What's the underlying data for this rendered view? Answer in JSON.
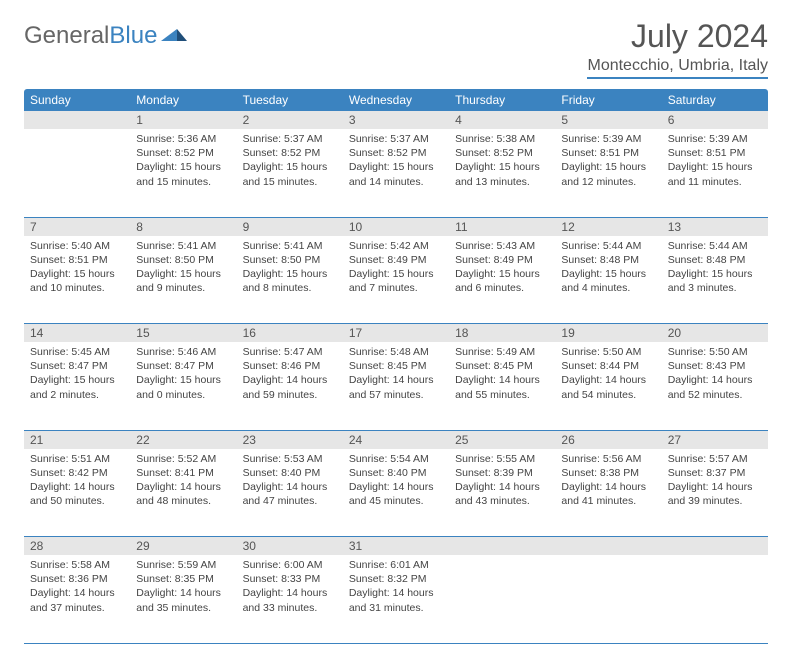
{
  "brand": {
    "part1": "General",
    "part2": "Blue"
  },
  "title": "July 2024",
  "location": "Montecchio, Umbria, Italy",
  "colors": {
    "accent": "#3b83c0",
    "header_bg": "#3b83c0",
    "header_text": "#ffffff",
    "daynum_bg": "#e6e6e6",
    "text": "#444444",
    "border": "#3b83c0"
  },
  "weekdays": [
    "Sunday",
    "Monday",
    "Tuesday",
    "Wednesday",
    "Thursday",
    "Friday",
    "Saturday"
  ],
  "weeks": [
    [
      null,
      {
        "n": "1",
        "sunrise": "Sunrise: 5:36 AM",
        "sunset": "Sunset: 8:52 PM",
        "day1": "Daylight: 15 hours",
        "day2": "and 15 minutes."
      },
      {
        "n": "2",
        "sunrise": "Sunrise: 5:37 AM",
        "sunset": "Sunset: 8:52 PM",
        "day1": "Daylight: 15 hours",
        "day2": "and 15 minutes."
      },
      {
        "n": "3",
        "sunrise": "Sunrise: 5:37 AM",
        "sunset": "Sunset: 8:52 PM",
        "day1": "Daylight: 15 hours",
        "day2": "and 14 minutes."
      },
      {
        "n": "4",
        "sunrise": "Sunrise: 5:38 AM",
        "sunset": "Sunset: 8:52 PM",
        "day1": "Daylight: 15 hours",
        "day2": "and 13 minutes."
      },
      {
        "n": "5",
        "sunrise": "Sunrise: 5:39 AM",
        "sunset": "Sunset: 8:51 PM",
        "day1": "Daylight: 15 hours",
        "day2": "and 12 minutes."
      },
      {
        "n": "6",
        "sunrise": "Sunrise: 5:39 AM",
        "sunset": "Sunset: 8:51 PM",
        "day1": "Daylight: 15 hours",
        "day2": "and 11 minutes."
      }
    ],
    [
      {
        "n": "7",
        "sunrise": "Sunrise: 5:40 AM",
        "sunset": "Sunset: 8:51 PM",
        "day1": "Daylight: 15 hours",
        "day2": "and 10 minutes."
      },
      {
        "n": "8",
        "sunrise": "Sunrise: 5:41 AM",
        "sunset": "Sunset: 8:50 PM",
        "day1": "Daylight: 15 hours",
        "day2": "and 9 minutes."
      },
      {
        "n": "9",
        "sunrise": "Sunrise: 5:41 AM",
        "sunset": "Sunset: 8:50 PM",
        "day1": "Daylight: 15 hours",
        "day2": "and 8 minutes."
      },
      {
        "n": "10",
        "sunrise": "Sunrise: 5:42 AM",
        "sunset": "Sunset: 8:49 PM",
        "day1": "Daylight: 15 hours",
        "day2": "and 7 minutes."
      },
      {
        "n": "11",
        "sunrise": "Sunrise: 5:43 AM",
        "sunset": "Sunset: 8:49 PM",
        "day1": "Daylight: 15 hours",
        "day2": "and 6 minutes."
      },
      {
        "n": "12",
        "sunrise": "Sunrise: 5:44 AM",
        "sunset": "Sunset: 8:48 PM",
        "day1": "Daylight: 15 hours",
        "day2": "and 4 minutes."
      },
      {
        "n": "13",
        "sunrise": "Sunrise: 5:44 AM",
        "sunset": "Sunset: 8:48 PM",
        "day1": "Daylight: 15 hours",
        "day2": "and 3 minutes."
      }
    ],
    [
      {
        "n": "14",
        "sunrise": "Sunrise: 5:45 AM",
        "sunset": "Sunset: 8:47 PM",
        "day1": "Daylight: 15 hours",
        "day2": "and 2 minutes."
      },
      {
        "n": "15",
        "sunrise": "Sunrise: 5:46 AM",
        "sunset": "Sunset: 8:47 PM",
        "day1": "Daylight: 15 hours",
        "day2": "and 0 minutes."
      },
      {
        "n": "16",
        "sunrise": "Sunrise: 5:47 AM",
        "sunset": "Sunset: 8:46 PM",
        "day1": "Daylight: 14 hours",
        "day2": "and 59 minutes."
      },
      {
        "n": "17",
        "sunrise": "Sunrise: 5:48 AM",
        "sunset": "Sunset: 8:45 PM",
        "day1": "Daylight: 14 hours",
        "day2": "and 57 minutes."
      },
      {
        "n": "18",
        "sunrise": "Sunrise: 5:49 AM",
        "sunset": "Sunset: 8:45 PM",
        "day1": "Daylight: 14 hours",
        "day2": "and 55 minutes."
      },
      {
        "n": "19",
        "sunrise": "Sunrise: 5:50 AM",
        "sunset": "Sunset: 8:44 PM",
        "day1": "Daylight: 14 hours",
        "day2": "and 54 minutes."
      },
      {
        "n": "20",
        "sunrise": "Sunrise: 5:50 AM",
        "sunset": "Sunset: 8:43 PM",
        "day1": "Daylight: 14 hours",
        "day2": "and 52 minutes."
      }
    ],
    [
      {
        "n": "21",
        "sunrise": "Sunrise: 5:51 AM",
        "sunset": "Sunset: 8:42 PM",
        "day1": "Daylight: 14 hours",
        "day2": "and 50 minutes."
      },
      {
        "n": "22",
        "sunrise": "Sunrise: 5:52 AM",
        "sunset": "Sunset: 8:41 PM",
        "day1": "Daylight: 14 hours",
        "day2": "and 48 minutes."
      },
      {
        "n": "23",
        "sunrise": "Sunrise: 5:53 AM",
        "sunset": "Sunset: 8:40 PM",
        "day1": "Daylight: 14 hours",
        "day2": "and 47 minutes."
      },
      {
        "n": "24",
        "sunrise": "Sunrise: 5:54 AM",
        "sunset": "Sunset: 8:40 PM",
        "day1": "Daylight: 14 hours",
        "day2": "and 45 minutes."
      },
      {
        "n": "25",
        "sunrise": "Sunrise: 5:55 AM",
        "sunset": "Sunset: 8:39 PM",
        "day1": "Daylight: 14 hours",
        "day2": "and 43 minutes."
      },
      {
        "n": "26",
        "sunrise": "Sunrise: 5:56 AM",
        "sunset": "Sunset: 8:38 PM",
        "day1": "Daylight: 14 hours",
        "day2": "and 41 minutes."
      },
      {
        "n": "27",
        "sunrise": "Sunrise: 5:57 AM",
        "sunset": "Sunset: 8:37 PM",
        "day1": "Daylight: 14 hours",
        "day2": "and 39 minutes."
      }
    ],
    [
      {
        "n": "28",
        "sunrise": "Sunrise: 5:58 AM",
        "sunset": "Sunset: 8:36 PM",
        "day1": "Daylight: 14 hours",
        "day2": "and 37 minutes."
      },
      {
        "n": "29",
        "sunrise": "Sunrise: 5:59 AM",
        "sunset": "Sunset: 8:35 PM",
        "day1": "Daylight: 14 hours",
        "day2": "and 35 minutes."
      },
      {
        "n": "30",
        "sunrise": "Sunrise: 6:00 AM",
        "sunset": "Sunset: 8:33 PM",
        "day1": "Daylight: 14 hours",
        "day2": "and 33 minutes."
      },
      {
        "n": "31",
        "sunrise": "Sunrise: 6:01 AM",
        "sunset": "Sunset: 8:32 PM",
        "day1": "Daylight: 14 hours",
        "day2": "and 31 minutes."
      },
      null,
      null,
      null
    ]
  ]
}
